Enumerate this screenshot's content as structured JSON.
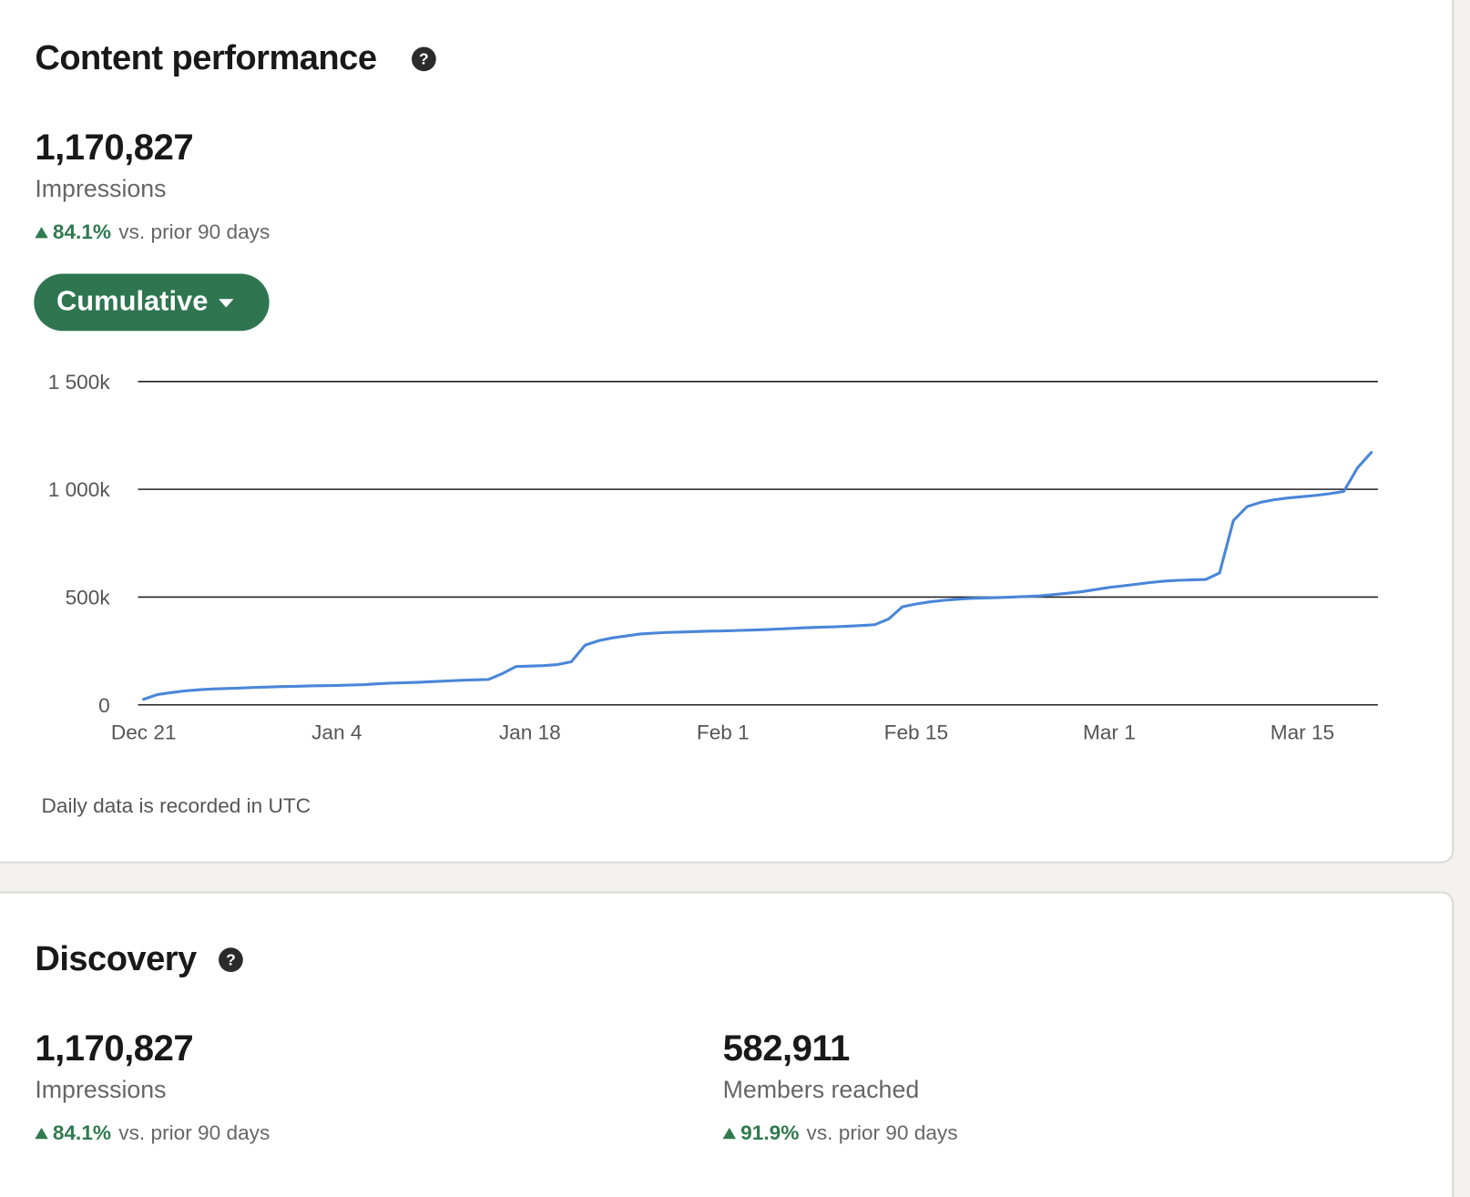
{
  "content_performance": {
    "title": "Content performance",
    "value": "1,170,827",
    "label": "Impressions",
    "change": "84.1%",
    "comparison": "vs. prior 90 days",
    "view": "Cumulative",
    "footnote": "Daily data is recorded in UTC"
  },
  "chart_data": {
    "type": "line",
    "color": "#4a86d8",
    "grid": true,
    "categories": [
      "Dec 21",
      null,
      null,
      null,
      null,
      null,
      null,
      null,
      null,
      null,
      null,
      null,
      null,
      null,
      "Jan 4",
      null,
      null,
      null,
      null,
      null,
      null,
      null,
      null,
      null,
      null,
      null,
      null,
      null,
      "Jan 18",
      null,
      null,
      null,
      null,
      null,
      null,
      null,
      null,
      null,
      null,
      null,
      null,
      null,
      "Feb 1",
      null,
      null,
      null,
      null,
      null,
      null,
      null,
      null,
      null,
      null,
      null,
      null,
      null,
      "Feb 15",
      null,
      null,
      null,
      null,
      null,
      null,
      null,
      null,
      null,
      null,
      null,
      null,
      null,
      "Mar 1",
      null,
      null,
      null,
      null,
      null,
      null,
      null,
      null,
      null,
      null,
      null,
      null,
      null,
      "Mar 15",
      null,
      null,
      null,
      null,
      null
    ],
    "values": [
      26000,
      48000,
      57000,
      65000,
      70000,
      74000,
      76000,
      78000,
      81000,
      83000,
      85000,
      86000,
      88000,
      89000,
      90000,
      92000,
      94000,
      98000,
      101000,
      103000,
      105000,
      108000,
      111000,
      114000,
      116000,
      118000,
      145000,
      178000,
      180000,
      182000,
      187000,
      200000,
      277000,
      298000,
      311000,
      320000,
      329000,
      333000,
      336000,
      338000,
      340000,
      342000,
      343000,
      345000,
      347000,
      349000,
      352000,
      355000,
      358000,
      360000,
      362000,
      365000,
      368000,
      372000,
      398000,
      455000,
      468000,
      478000,
      485000,
      490000,
      494000,
      496000,
      498000,
      500000,
      503000,
      506000,
      512000,
      518000,
      525000,
      535000,
      545000,
      552000,
      560000,
      568000,
      574000,
      578000,
      580000,
      582000,
      612000,
      855000,
      920000,
      940000,
      952000,
      960000,
      966000,
      972000,
      980000,
      990000,
      1100000,
      1170827
    ],
    "ylim": [
      0,
      1500000
    ],
    "yticks": [
      0,
      {
        "value": 500000,
        "label": "500k"
      },
      {
        "value": 1000000,
        "label": "1 000k"
      },
      {
        "value": 1500000,
        "label": "1 500k"
      }
    ]
  },
  "discovery": {
    "title": "Discovery",
    "metrics": [
      {
        "value": "1,170,827",
        "label": "Impressions",
        "change": "84.1%",
        "comparison": "vs. prior 90 days"
      },
      {
        "value": "582,911",
        "label": "Members reached",
        "change": "91.9%",
        "comparison": "vs. prior 90 days"
      }
    ]
  }
}
